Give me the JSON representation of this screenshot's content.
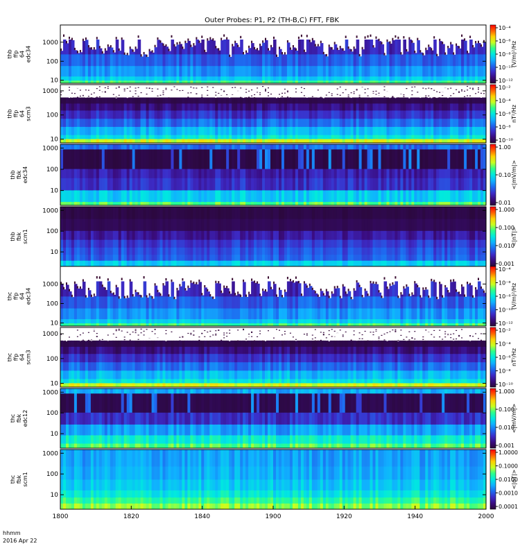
{
  "title": "Outer Probes: P1, P2 (TH-B,C) FFT, FBK",
  "footer": {
    "line1": "hhmm",
    "line2": "2016 Apr 22"
  },
  "chart_data": {
    "type": "heatmap",
    "title": "Outer Probes: P1, P2 (TH-B,C) FFT, FBK",
    "xaxis": {
      "label": "hhmm",
      "date": "2016 Apr 22",
      "ticks": [
        "1800",
        "1820",
        "1840",
        "1900",
        "1920",
        "1940",
        "2000"
      ],
      "range": [
        "1800",
        "2000"
      ]
    },
    "panels": [
      {
        "id": "thb-ffp-e",
        "ylabel": [
          "thb",
          "ffp",
          "64",
          "edc34"
        ],
        "yticks": [
          "10",
          "100",
          "1000"
        ],
        "ylim": [
          7,
          8000
        ],
        "yscale": "log",
        "zlabel": "(V/m)²/Hz",
        "zticks": [
          "10⁻⁴",
          "10⁻⁶",
          "10⁻⁸",
          "10⁻¹⁰",
          "10⁻¹²"
        ],
        "style": "electric-fft"
      },
      {
        "id": "thb-ffp-b",
        "ylabel": [
          "thb",
          "ffp",
          "64",
          "scm3"
        ],
        "yticks": [
          "10",
          "100",
          "1000"
        ],
        "ylim": [
          7,
          1800
        ],
        "yscale": "log",
        "zlabel": "nT²/Hz",
        "zticks": [
          "10⁻²",
          "10⁻⁴",
          "10⁻⁶",
          "10⁻⁸",
          "10⁻¹⁰"
        ],
        "style": "magnetic-fft"
      },
      {
        "id": "thb-fbk-e",
        "ylabel": [
          "thb",
          "fbk",
          "edc34"
        ],
        "yticks": [
          "10",
          "100",
          "1000"
        ],
        "ylim": [
          2,
          1500
        ],
        "yscale": "log",
        "zlabel": "<|mV/m|>",
        "zticks": [
          "1.00",
          "0.10",
          "0.01"
        ],
        "style": "electric-fbk"
      },
      {
        "id": "thb-fbk-b",
        "ylabel": [
          "thb",
          "fbk",
          "scm1"
        ],
        "yticks": [
          "10",
          "100",
          "1000"
        ],
        "ylim": [
          2,
          1500
        ],
        "yscale": "log",
        "zlabel": "<|nT|>",
        "zticks": [
          "1.000",
          "0.100",
          "0.010",
          "0.001"
        ],
        "style": "magnetic-fbk-b"
      },
      {
        "id": "thc-ffp-e",
        "ylabel": [
          "thc",
          "ffp",
          "64",
          "edc34"
        ],
        "yticks": [
          "10",
          "100",
          "1000"
        ],
        "ylim": [
          7,
          8000
        ],
        "yscale": "log",
        "zlabel": "(V/m)²/Hz",
        "zticks": [
          "10⁻⁴",
          "10⁻⁶",
          "10⁻⁸",
          "10⁻¹⁰",
          "10⁻¹²"
        ],
        "style": "electric-fft"
      },
      {
        "id": "thc-ffp-b",
        "ylabel": [
          "thc",
          "ffp",
          "64",
          "scm3"
        ],
        "yticks": [
          "10",
          "100",
          "1000"
        ],
        "ylim": [
          7,
          1800
        ],
        "yscale": "log",
        "zlabel": "nT²/Hz",
        "zticks": [
          "10⁻²",
          "10⁻⁴",
          "10⁻⁶",
          "10⁻⁸",
          "10⁻¹⁰"
        ],
        "style": "magnetic-fft"
      },
      {
        "id": "thc-fbk-e",
        "ylabel": [
          "thc",
          "fbk",
          "edc12"
        ],
        "yticks": [
          "10",
          "100",
          "1000"
        ],
        "ylim": [
          2,
          1500
        ],
        "yscale": "log",
        "zlabel": "<|mV/m|>",
        "zticks": [
          "1.000",
          "0.100",
          "0.010",
          "0.001"
        ],
        "style": "electric-fbk-c"
      },
      {
        "id": "thc-fbk-b",
        "ylabel": [
          "thc",
          "fbk",
          "scm1"
        ],
        "yticks": [
          "10",
          "100",
          "1000"
        ],
        "ylim": [
          2,
          1500
        ],
        "yscale": "log",
        "zlabel": "<|nT|>",
        "zticks": [
          "1.0000",
          "0.1000",
          "0.0100",
          "0.0010",
          "0.0001"
        ],
        "style": "magnetic-fbk-c"
      }
    ],
    "colormap": [
      "#2a0838",
      "#3a0c80",
      "#3c2cc8",
      "#1e6af0",
      "#10b0ff",
      "#00e8e0",
      "#2eff8a",
      "#c8ff20",
      "#ffd000",
      "#ff6000",
      "#ff0000"
    ]
  }
}
